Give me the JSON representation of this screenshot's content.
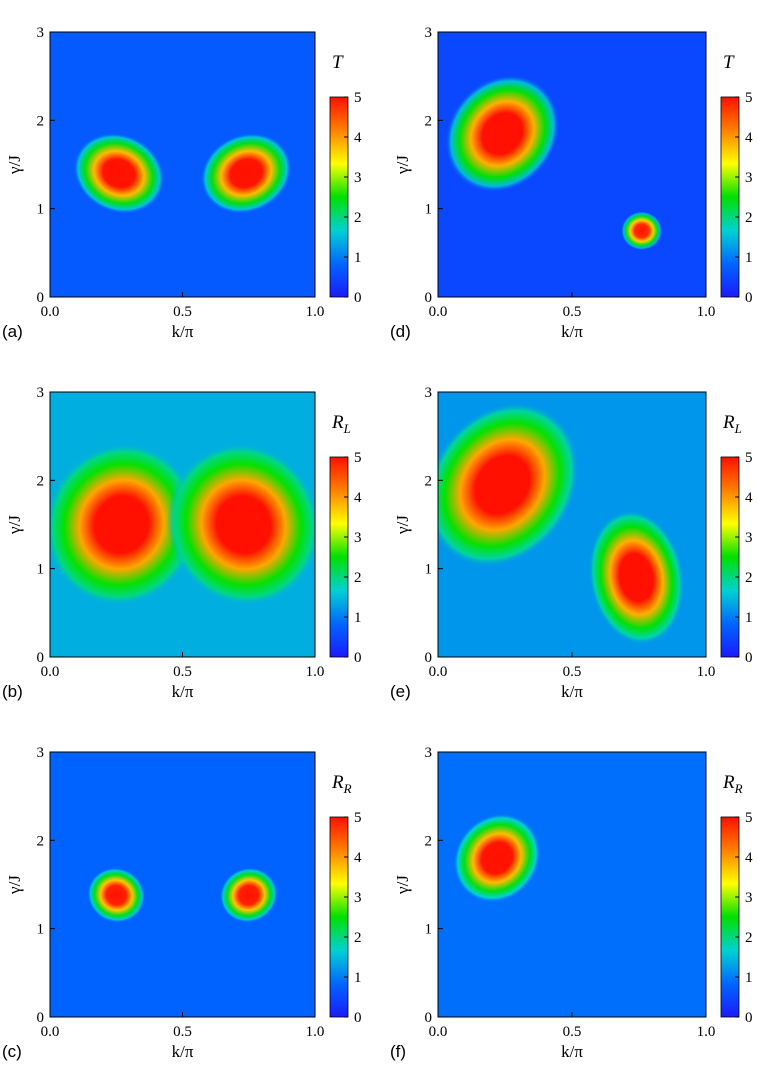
{
  "colormap": [
    "#1a1aff",
    "#0066ff",
    "#00d2d2",
    "#00e000",
    "#ffff00",
    "#ff8000",
    "#ff1000"
  ],
  "chart_data": [
    {
      "panel": "(a)",
      "type": "heatmap",
      "xlabel": "k/π",
      "ylabel": "γ/J",
      "xlim": [
        0,
        1
      ],
      "ylim": [
        0,
        3
      ],
      "xticks": [
        "0.0",
        "0.5",
        "1.0"
      ],
      "yticks": [
        "0",
        "1",
        "2",
        "3"
      ],
      "colorbar": {
        "title": "T",
        "sub": "",
        "range": [
          0,
          5
        ],
        "ticks": [
          "0",
          "1",
          "2",
          "3",
          "4",
          "5"
        ]
      },
      "background": 0.7,
      "regions": [
        {
          "x": 0.26,
          "y": 1.4,
          "rx": 0.08,
          "ry": 0.2,
          "rot": 25,
          "peak": 5.4
        },
        {
          "x": 0.74,
          "y": 1.4,
          "rx": 0.08,
          "ry": 0.2,
          "rot": -25,
          "peak": 5.4
        }
      ]
    },
    {
      "panel": "(b)",
      "type": "heatmap",
      "xlabel": "k/π",
      "ylabel": "γ/J",
      "xlim": [
        0,
        1
      ],
      "ylim": [
        0,
        3
      ],
      "xticks": [
        "0.0",
        "0.5",
        "1.0"
      ],
      "yticks": [
        "0",
        "1",
        "2",
        "3"
      ],
      "colorbar": {
        "title": "R",
        "sub": "L",
        "range": [
          0,
          5
        ],
        "ticks": [
          "0",
          "1",
          "2",
          "3",
          "4",
          "5"
        ]
      },
      "background": 1.4,
      "regions": [
        {
          "x": 0.27,
          "y": 1.5,
          "rx": 0.13,
          "ry": 0.42,
          "rot": 20,
          "peak": 5.6
        },
        {
          "x": 0.73,
          "y": 1.5,
          "rx": 0.13,
          "ry": 0.42,
          "rot": -20,
          "peak": 5.6
        }
      ]
    },
    {
      "panel": "(c)",
      "type": "heatmap",
      "xlabel": "k/π",
      "ylabel": "γ/J",
      "xlim": [
        0,
        1
      ],
      "ylim": [
        0,
        3
      ],
      "xticks": [
        "0.0",
        "0.5",
        "1.0"
      ],
      "yticks": [
        "0",
        "1",
        "2",
        "3"
      ],
      "colorbar": {
        "title": "R",
        "sub": "R",
        "range": [
          0,
          5
        ],
        "ticks": [
          "0",
          "1",
          "2",
          "3",
          "4",
          "5"
        ]
      },
      "background": 0.8,
      "regions": [
        {
          "x": 0.25,
          "y": 1.38,
          "rx": 0.05,
          "ry": 0.14,
          "rot": 25,
          "peak": 5.3
        },
        {
          "x": 0.75,
          "y": 1.38,
          "rx": 0.05,
          "ry": 0.14,
          "rot": -25,
          "peak": 5.3
        }
      ]
    },
    {
      "panel": "(d)",
      "type": "heatmap",
      "xlabel": "k/π",
      "ylabel": "γ/J",
      "xlim": [
        0,
        1
      ],
      "ylim": [
        0,
        3
      ],
      "xticks": [
        "0.0",
        "0.5",
        "1.0"
      ],
      "yticks": [
        "0",
        "1",
        "2",
        "3"
      ],
      "colorbar": {
        "title": "T",
        "sub": "",
        "range": [
          0,
          5
        ],
        "ticks": [
          "0",
          "1",
          "2",
          "3",
          "4",
          "5"
        ]
      },
      "background": 0.5,
      "regions": [
        {
          "x": 0.24,
          "y": 1.85,
          "rx": 0.09,
          "ry": 0.32,
          "rot": 40,
          "peak": 5.5
        },
        {
          "x": 0.76,
          "y": 0.75,
          "rx": 0.035,
          "ry": 0.1,
          "rot": 0,
          "peak": 5.2
        }
      ]
    },
    {
      "panel": "(e)",
      "type": "heatmap",
      "xlabel": "k/π",
      "ylabel": "γ/J",
      "xlim": [
        0,
        1
      ],
      "ylim": [
        0,
        3
      ],
      "xticks": [
        "0.0",
        "0.5",
        "1.0"
      ],
      "yticks": [
        "0",
        "1",
        "2",
        "3"
      ],
      "colorbar": {
        "title": "R",
        "sub": "L",
        "range": [
          0,
          5
        ],
        "ticks": [
          "0",
          "1",
          "2",
          "3",
          "4",
          "5"
        ]
      },
      "background": 1.2,
      "regions": [
        {
          "x": 0.24,
          "y": 1.95,
          "rx": 0.12,
          "ry": 0.45,
          "rot": 35,
          "peak": 5.6
        },
        {
          "x": 0.74,
          "y": 0.9,
          "rx": 0.08,
          "ry": 0.35,
          "rot": -10,
          "peak": 5.5
        }
      ]
    },
    {
      "panel": "(f)",
      "type": "heatmap",
      "xlabel": "k/π",
      "ylabel": "γ/J",
      "xlim": [
        0,
        1
      ],
      "ylim": [
        0,
        3
      ],
      "xticks": [
        "0.0",
        "0.5",
        "1.0"
      ],
      "yticks": [
        "0",
        "1",
        "2",
        "3"
      ],
      "colorbar": {
        "title": "R",
        "sub": "R",
        "range": [
          0,
          5
        ],
        "ticks": [
          "0",
          "1",
          "2",
          "3",
          "4",
          "5"
        ]
      },
      "background": 0.9,
      "regions": [
        {
          "x": 0.22,
          "y": 1.8,
          "rx": 0.07,
          "ry": 0.24,
          "rot": 40,
          "peak": 5.4
        }
      ]
    }
  ]
}
